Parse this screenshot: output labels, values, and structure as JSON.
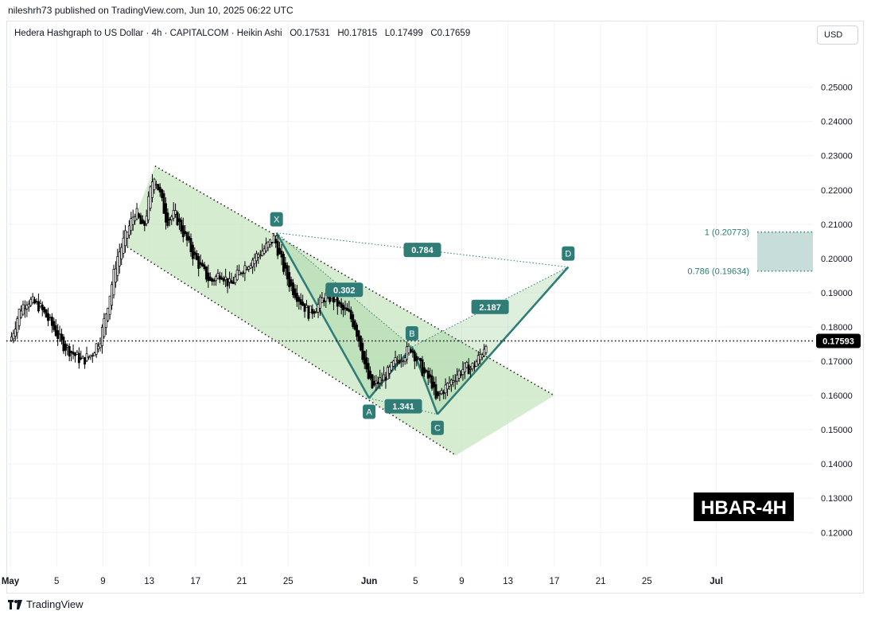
{
  "publisher": "nileshrh73 published on TradingView.com, Jun 10, 2025 06:22 UTC",
  "legend": {
    "symbol": "Hedera Hashgraph to US Dollar · 4h · CAPITALCOM · Heikin Ashi",
    "open": "O0.17531",
    "high": "H0.17815",
    "low": "L0.17499",
    "close": "C0.17659"
  },
  "currency_button": "USD",
  "watermark": "HBAR-4H",
  "footer_brand": "TradingView",
  "colors": {
    "candle": "#000000",
    "pattern_line": "#2f7d76",
    "label_bg": "#2f7d76",
    "channel_fill": "#c8e6c0",
    "projection_box": "#b9d4cf"
  },
  "chart_data": {
    "type": "candlestick",
    "title": "Hedera Hashgraph to US Dollar · 4h · CAPITALCOM · Heikin Ashi",
    "y_axis": {
      "range": [
        0.111,
        0.262
      ],
      "ticks": [
        "0.25000",
        "0.24000",
        "0.23000",
        "0.22000",
        "0.21000",
        "0.20000",
        "0.19000",
        "0.18000",
        "0.17000",
        "0.16000",
        "0.15000",
        "0.14000",
        "0.13000",
        "0.12000"
      ]
    },
    "x_axis": {
      "range_days": [
        0,
        69
      ],
      "ticks": [
        {
          "day": 0,
          "label": "May"
        },
        {
          "day": 4,
          "label": "5"
        },
        {
          "day": 8,
          "label": "9"
        },
        {
          "day": 12,
          "label": "13"
        },
        {
          "day": 16,
          "label": "17"
        },
        {
          "day": 20,
          "label": "21"
        },
        {
          "day": 24,
          "label": "25"
        },
        {
          "day": 31,
          "label": "Jun"
        },
        {
          "day": 35,
          "label": "5"
        },
        {
          "day": 39,
          "label": "9"
        },
        {
          "day": 43,
          "label": "13"
        },
        {
          "day": 47,
          "label": "17"
        },
        {
          "day": 51,
          "label": "21"
        },
        {
          "day": 55,
          "label": "25"
        },
        {
          "day": 61,
          "label": "Jul"
        }
      ]
    },
    "current_price": "0.17593",
    "price_path": [
      [
        0.0,
        0.176
      ],
      [
        0.8,
        0.185
      ],
      [
        1.5,
        0.188
      ],
      [
        2.5,
        0.186
      ],
      [
        3.5,
        0.181
      ],
      [
        4.5,
        0.175
      ],
      [
        5.5,
        0.172
      ],
      [
        6.2,
        0.17
      ],
      [
        7.0,
        0.172
      ],
      [
        7.8,
        0.177
      ],
      [
        8.5,
        0.188
      ],
      [
        9.2,
        0.2
      ],
      [
        10.0,
        0.207
      ],
      [
        10.8,
        0.214
      ],
      [
        11.5,
        0.208
      ],
      [
        12.0,
        0.218
      ],
      [
        12.4,
        0.225
      ],
      [
        12.9,
        0.219
      ],
      [
        13.5,
        0.211
      ],
      [
        14.2,
        0.213
      ],
      [
        15.0,
        0.207
      ],
      [
        15.8,
        0.201
      ],
      [
        16.5,
        0.197
      ],
      [
        17.3,
        0.193
      ],
      [
        18.2,
        0.196
      ],
      [
        19.0,
        0.192
      ],
      [
        20.0,
        0.197
      ],
      [
        21.0,
        0.2
      ],
      [
        22.0,
        0.203
      ],
      [
        22.8,
        0.206
      ],
      [
        23.5,
        0.198
      ],
      [
        24.2,
        0.192
      ],
      [
        25.0,
        0.188
      ],
      [
        25.8,
        0.184
      ],
      [
        26.5,
        0.186
      ],
      [
        27.2,
        0.189
      ],
      [
        28.0,
        0.188
      ],
      [
        28.6,
        0.185
      ],
      [
        29.2,
        0.184
      ],
      [
        29.8,
        0.18
      ],
      [
        30.3,
        0.174
      ],
      [
        30.8,
        0.166
      ],
      [
        31.3,
        0.162
      ],
      [
        31.8,
        0.164
      ],
      [
        32.5,
        0.166
      ],
      [
        33.3,
        0.17
      ],
      [
        34.0,
        0.172
      ],
      [
        34.6,
        0.174
      ],
      [
        35.2,
        0.17
      ],
      [
        35.8,
        0.166
      ],
      [
        36.4,
        0.164
      ],
      [
        36.8,
        0.158
      ],
      [
        37.2,
        0.161
      ],
      [
        37.8,
        0.163
      ],
      [
        38.5,
        0.166
      ],
      [
        39.2,
        0.168
      ],
      [
        39.8,
        0.168
      ],
      [
        40.3,
        0.17
      ],
      [
        40.8,
        0.173
      ],
      [
        41.2,
        0.177
      ]
    ],
    "harmonic_points": [
      {
        "label": "X",
        "day": 23.0,
        "price": 0.2075
      },
      {
        "label": "A",
        "day": 31.0,
        "price": 0.1592
      },
      {
        "label": "B",
        "day": 34.7,
        "price": 0.1742
      },
      {
        "label": "C",
        "day": 36.9,
        "price": 0.1545
      },
      {
        "label": "D",
        "day": 48.2,
        "price": 0.1975
      }
    ],
    "ratios": [
      "0.302",
      "1.341",
      "0.784",
      "2.187"
    ],
    "projection_levels": [
      {
        "label": "1 (0.20773)",
        "price": 0.20773
      },
      {
        "label": "0.786 (0.19634)",
        "price": 0.19634
      }
    ],
    "channel": {
      "upper": [
        [
          12.5,
          0.227
        ],
        [
          47.0,
          0.16
        ]
      ],
      "lower": [
        [
          9.8,
          0.204
        ],
        [
          38.5,
          0.1425
        ]
      ]
    },
    "grid": true
  }
}
